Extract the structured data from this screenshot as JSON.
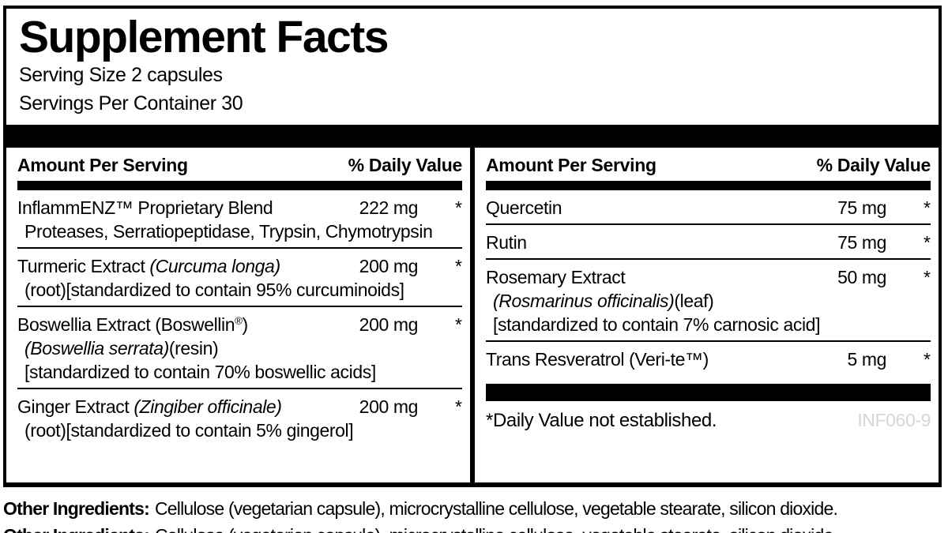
{
  "colors": {
    "text": "#000000",
    "background": "#ffffff",
    "rule": "#000000",
    "product_code_gray": "#d6d6d6"
  },
  "supplement": {
    "title": "Supplement Facts",
    "serving_size": "Serving Size 2 capsules",
    "servings_per_container": "Servings Per Container 30",
    "columns": [
      {
        "header": {
          "amount_per_serving": "Amount Per Serving",
          "daily_value": "% Daily Value"
        },
        "rows": [
          {
            "name": "InflammENZ™ Proprietary Blend",
            "amount": "222 mg",
            "dv": "*",
            "detail1": "Proteases, Serratiopeptidase, Trypsin, Chymotrypsin"
          },
          {
            "name": "Turmeric Extract ",
            "name_italic": "(Curcuma longa)",
            "amount": "200 mg",
            "dv": "*",
            "detail1": "(root)[standardized to contain 95% curcuminoids]"
          },
          {
            "name": "Boswellia Extract (Boswellin",
            "name_sup": "®",
            "name_post": ")",
            "amount": "200 mg",
            "dv": "*",
            "detail1_italic": "(Boswellia serrata)",
            "detail1": "(resin)",
            "detail2": "[standardized to contain 70% boswellic acids]"
          },
          {
            "name": "Ginger Extract ",
            "name_italic": "(Zingiber officinale)",
            "amount": "200 mg",
            "dv": "*",
            "detail1": "(root)[standardized to contain 5% gingerol]"
          }
        ]
      },
      {
        "header": {
          "amount_per_serving": "Amount Per Serving",
          "daily_value": "% Daily Value"
        },
        "rows": [
          {
            "name": "Quercetin",
            "amount": "75 mg",
            "dv": "*"
          },
          {
            "name": "Rutin",
            "amount": "75 mg",
            "dv": "*"
          },
          {
            "name": "Rosemary Extract",
            "amount": "50 mg",
            "dv": "*",
            "detail1_italic": "(Rosmarinus officinalis)",
            "detail1": "(leaf)",
            "detail2": "[standardized to contain 7% carnosic acid]"
          },
          {
            "name": "Trans Resveratrol (Veri-te™)",
            "amount": "5 mg",
            "dv": "*"
          }
        ]
      }
    ],
    "footnote": "*Daily Value not established.",
    "product_code": "INF060-9"
  },
  "other_ingredients": {
    "label": "Other Ingredients:",
    "text": "Cellulose (vegetarian capsule), microcrystalline cellulose, vegetable stearate, silicon dioxide."
  }
}
